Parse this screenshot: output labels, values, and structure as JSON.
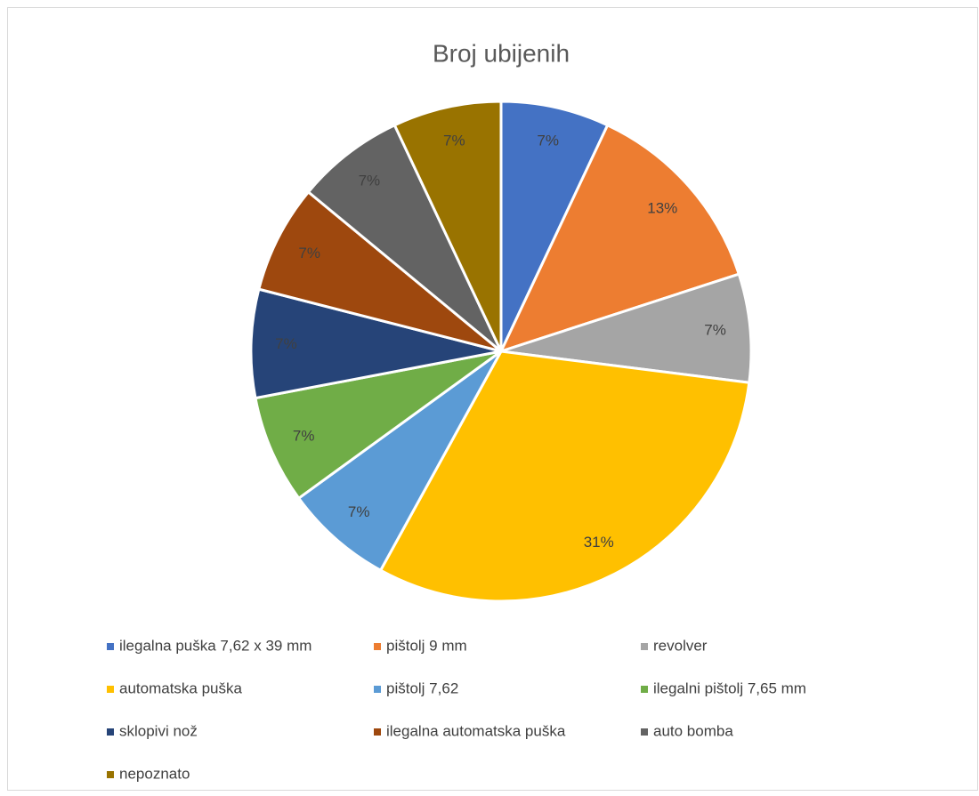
{
  "chart_data": {
    "type": "pie",
    "title": "Broj ubijenih",
    "categories": [
      "ilegalna puška 7,62 x 39 mm",
      "pištolj 9 mm",
      "revolver",
      "automatska puška",
      "pištolj 7,62",
      "ilegalni pištolj 7,65 mm",
      "sklopivi nož",
      "ilegalna automatska puška",
      "auto bomba",
      "nepoznato"
    ],
    "values": [
      7,
      13,
      7,
      31,
      7,
      7,
      7,
      7,
      7,
      7
    ],
    "value_labels": [
      "7%",
      "13%",
      "7%",
      "31%",
      "7%",
      "7%",
      "7%",
      "7%",
      "7%",
      "7%"
    ],
    "colors": [
      "#4472c4",
      "#ed7d31",
      "#a5a5a5",
      "#ffc000",
      "#5b9bd5",
      "#70ad47",
      "#264478",
      "#9e480e",
      "#636363",
      "#997300"
    ],
    "legend": "bottom"
  }
}
